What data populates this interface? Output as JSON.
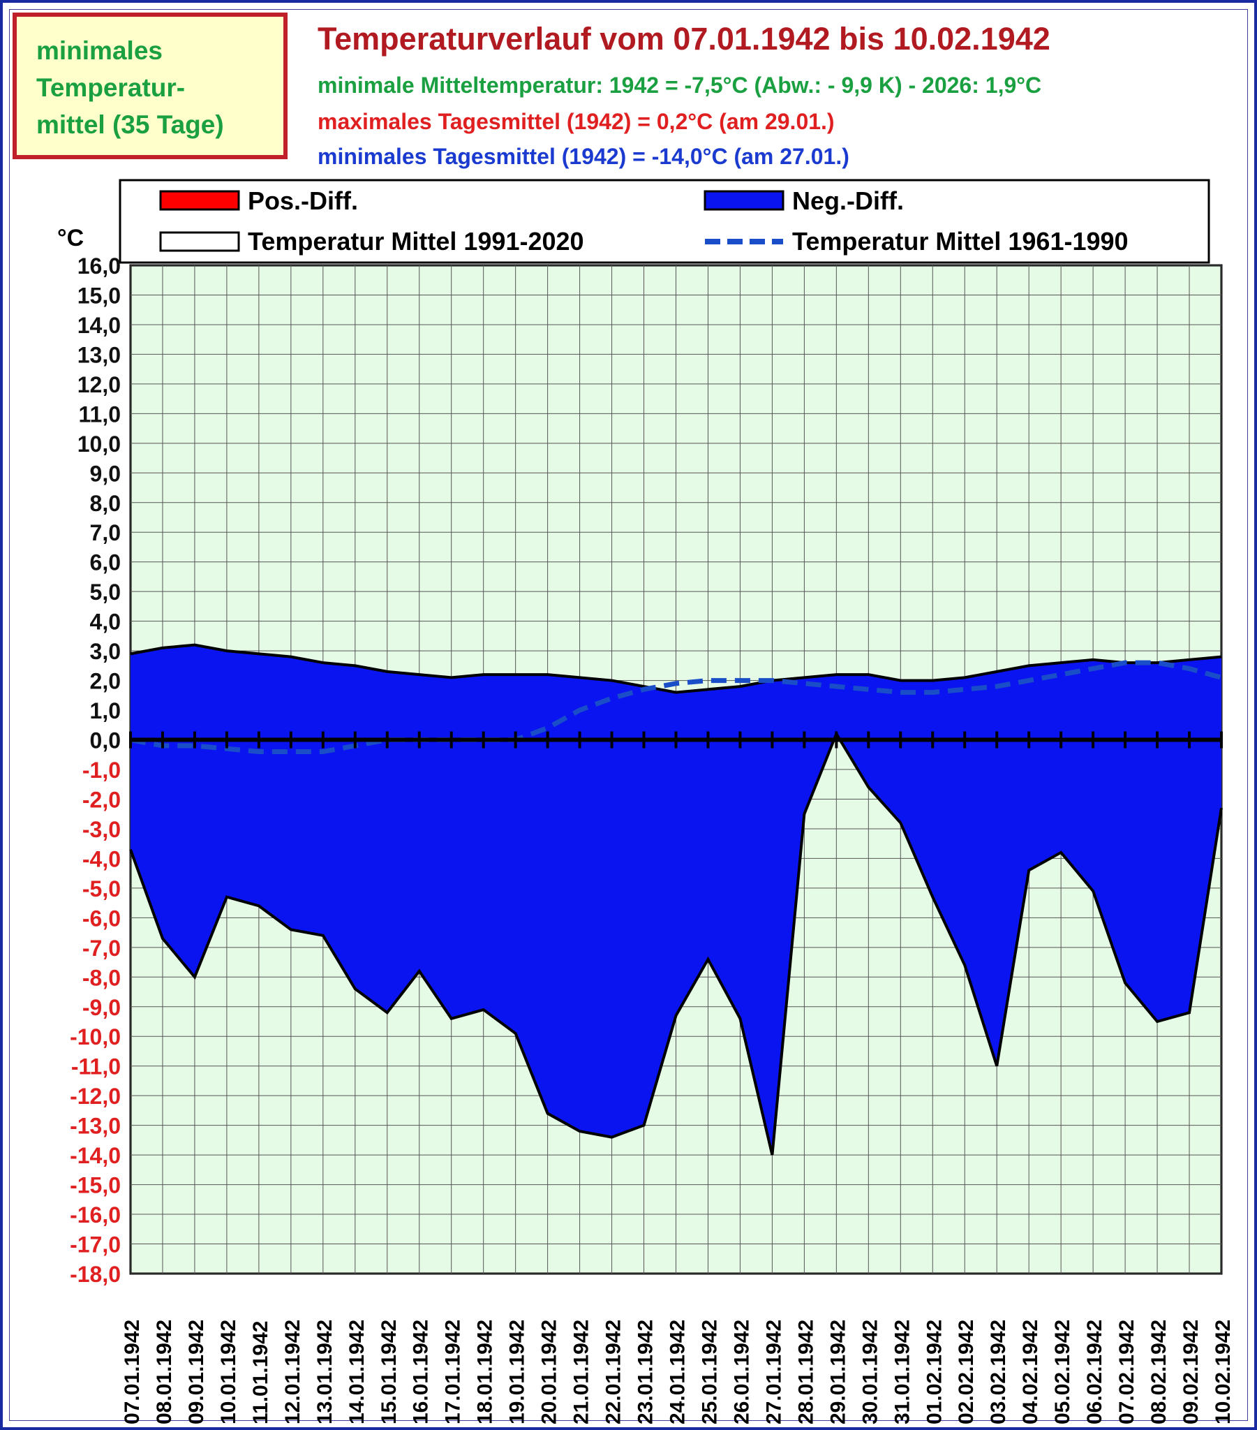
{
  "badge": {
    "line1": "minimales",
    "line2": "Temperatur-",
    "line3": "mittel (35 Tage)"
  },
  "header": {
    "title": "Temperaturverlauf vom 07.01.1942 bis 10.02.1942",
    "subtitle1": "minimale  Mitteltemperatur:  1942 = -7,5°C (Abw.: - 9,9  K) - 2026: 1,9°C",
    "subtitle2": "maximales  Tagesmittel  (1942) = 0,2°C (am 29.01.)",
    "subtitle3": "minimales  Tagesmittel  (1942) = -14,0°C (am 27.01.)"
  },
  "legend": {
    "pos": "Pos.-Diff.",
    "neg": "Neg.-Diff.",
    "mean1991": "Temperatur Mittel 1991-2020",
    "mean1961": "Temperatur Mittel 1961-1990"
  },
  "colors": {
    "plot_bg": "#e6fbe6",
    "neg_fill": "#0a14f0",
    "pos_fill": "#ff0000",
    "dashed_line": "#1a4ec8",
    "positive_ticks": "#111111",
    "negative_ticks": "#e02020"
  },
  "chart_data": {
    "type": "area",
    "ylabel": "°C",
    "ylim": [
      -18,
      16
    ],
    "y_ticks": [
      "16,0",
      "15,0",
      "14,0",
      "13,0",
      "12,0",
      "11,0",
      "10,0",
      "9,0",
      "8,0",
      "7,0",
      "6,0",
      "5,0",
      "4,0",
      "3,0",
      "2,0",
      "1,0",
      "0,0",
      "-1,0",
      "-2,0",
      "-3,0",
      "-4,0",
      "-5,0",
      "-6,0",
      "-7,0",
      "-8,0",
      "-9,0",
      "-10,0",
      "-11,0",
      "-12,0",
      "-13,0",
      "-14,0",
      "-15,0",
      "-16,0",
      "-17,0",
      "-18,0"
    ],
    "grid": true,
    "legend_position": "top",
    "categories": [
      "07.01.1942",
      "08.01.1942",
      "09.01.1942",
      "10.01.1942",
      "11.01.1942",
      "12.01.1942",
      "13.01.1942",
      "14.01.1942",
      "15.01.1942",
      "16.01.1942",
      "17.01.1942",
      "18.01.1942",
      "19.01.1942",
      "20.01.1942",
      "21.01.1942",
      "22.01.1942",
      "23.01.1942",
      "24.01.1942",
      "25.01.1942",
      "26.01.1942",
      "27.01.1942",
      "28.01.1942",
      "29.01.1942",
      "30.01.1942",
      "31.01.1942",
      "01.02.1942",
      "02.02.1942",
      "03.02.1942",
      "04.02.1942",
      "05.02.1942",
      "06.02.1942",
      "07.02.1942",
      "08.02.1942",
      "09.02.1942",
      "10.02.1942"
    ],
    "series": [
      {
        "name": "Temperatur Mittel 1991-2020",
        "values": [
          2.9,
          3.1,
          3.2,
          3.0,
          2.9,
          2.8,
          2.6,
          2.5,
          2.3,
          2.2,
          2.1,
          2.2,
          2.2,
          2.2,
          2.1,
          2.0,
          1.8,
          1.6,
          1.7,
          1.8,
          2.0,
          2.1,
          2.2,
          2.2,
          2.0,
          2.0,
          2.1,
          2.3,
          2.5,
          2.6,
          2.7,
          2.6,
          2.6,
          2.7,
          2.8
        ]
      },
      {
        "name": "Temperatur Mittel 1961-1990",
        "values": [
          0.0,
          -0.2,
          -0.2,
          -0.3,
          -0.4,
          -0.4,
          -0.4,
          -0.2,
          0.0,
          0.0,
          0.0,
          0.0,
          0.0,
          0.4,
          1.0,
          1.4,
          1.7,
          1.9,
          2.0,
          2.0,
          2.0,
          1.9,
          1.8,
          1.7,
          1.6,
          1.6,
          1.7,
          1.8,
          2.0,
          2.2,
          2.4,
          2.6,
          2.6,
          2.4,
          2.1
        ]
      },
      {
        "name": "1942",
        "values": [
          -3.7,
          -6.7,
          -8.0,
          -5.3,
          -5.6,
          -6.4,
          -6.6,
          -8.4,
          -9.2,
          -7.8,
          -9.4,
          -9.1,
          -9.9,
          -12.6,
          -13.2,
          -13.4,
          -13.0,
          -9.3,
          -7.4,
          -9.4,
          -14.0,
          -2.5,
          0.2,
          -1.6,
          -2.8,
          -5.3,
          -7.6,
          -11.0,
          -4.4,
          -3.8,
          -5.1,
          -8.2,
          -9.5,
          -9.2,
          -2.3
        ]
      }
    ]
  }
}
